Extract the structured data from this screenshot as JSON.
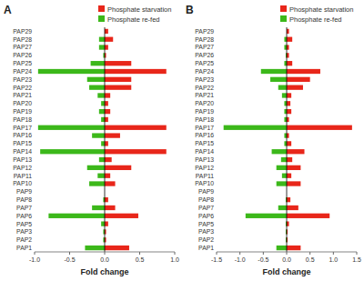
{
  "chart_data": [
    {
      "type": "bar",
      "orientation": "horizontal",
      "title": "A",
      "x_label": "Fold change",
      "categories": [
        "PAP29",
        "PAP28",
        "PAP27",
        "PAP26",
        "PAP25",
        "PAP24",
        "PAP23",
        "PAP22",
        "PAP21",
        "PAP20",
        "PAP19",
        "PAP18",
        "PAP17",
        "PAP16",
        "PAP15",
        "PAP14",
        "PAP13",
        "PAP12",
        "PAP11",
        "PAP10",
        "PAP9",
        "PAP8",
        "PAP7",
        "PAP6",
        "PAP5",
        "PAP3",
        "PAP2",
        "PAP1"
      ],
      "series": [
        {
          "name": "Phosphate starvation",
          "color": "#e8261a",
          "values": [
            0.05,
            0.12,
            0.05,
            0.02,
            0.38,
            0.88,
            0.38,
            0.38,
            0.08,
            0.05,
            0.08,
            0.05,
            0.88,
            0.22,
            0.05,
            0.88,
            0.1,
            0.38,
            0.08,
            0.15,
            0.0,
            0.05,
            0.15,
            0.48,
            0.05,
            0.02,
            0.02,
            0.35
          ]
        },
        {
          "name": "Phosphate re-fed",
          "color": "#3cb81a",
          "values": [
            0.0,
            -0.08,
            -0.08,
            -0.02,
            -0.2,
            -0.95,
            -0.25,
            -0.22,
            -0.1,
            -0.05,
            -0.08,
            -0.05,
            -0.95,
            -0.18,
            -0.05,
            -0.92,
            -0.08,
            -0.25,
            -0.1,
            -0.22,
            0.0,
            -0.02,
            -0.18,
            -0.8,
            -0.05,
            -0.02,
            -0.02,
            -0.28
          ]
        }
      ],
      "xlim": [
        -1.0,
        1.0
      ],
      "xticks": [
        {
          "value": -1.0,
          "label": "-1.0"
        },
        -0.5,
        {
          "value": 0.0,
          "label": "0.0"
        },
        0.5,
        {
          "value": 1.0,
          "label": "1.0"
        }
      ],
      "grid": false,
      "legend": "upper right"
    },
    {
      "type": "bar",
      "orientation": "horizontal",
      "title": "B",
      "x_label": "Fold change",
      "categories": [
        "PAP29",
        "PAP28",
        "PAP27",
        "PAP26",
        "PAP25",
        "PAP24",
        "PAP23",
        "PAP22",
        "PAP21",
        "PAP20",
        "PAP19",
        "PAP18",
        "PAP17",
        "PAP16",
        "PAP15",
        "PAP14",
        "PAP13",
        "PAP12",
        "PAP11",
        "PAP10",
        "PAP9",
        "PAP8",
        "PAP7",
        "PAP6",
        "PAP5",
        "PAP3",
        "PAP2",
        "PAP1"
      ],
      "series": [
        {
          "name": "Phosphate starvation",
          "color": "#e8261a",
          "values": [
            0.05,
            0.12,
            0.05,
            0.05,
            0.12,
            0.72,
            0.5,
            0.35,
            0.1,
            0.08,
            0.1,
            0.05,
            1.4,
            0.05,
            0.1,
            0.38,
            0.12,
            0.3,
            0.1,
            0.3,
            0.0,
            0.08,
            0.25,
            0.92,
            0.05,
            0.02,
            0.02,
            0.3
          ]
        },
        {
          "name": "Phosphate re-fed",
          "color": "#3cb81a",
          "values": [
            0.0,
            -0.05,
            -0.05,
            -0.02,
            -0.05,
            -0.55,
            -0.35,
            -0.18,
            -0.1,
            -0.05,
            -0.05,
            -0.05,
            -1.35,
            -0.05,
            -0.05,
            -0.32,
            -0.12,
            -0.22,
            -0.1,
            -0.22,
            0.0,
            -0.02,
            -0.18,
            -0.88,
            -0.02,
            -0.02,
            -0.02,
            -0.22
          ]
        }
      ],
      "xlim": [
        -1.5,
        1.5
      ],
      "xticks": [
        -1.5,
        {
          "value": -1.0,
          "label": "-1.0"
        },
        -0.5,
        {
          "value": 0.0,
          "label": "0.0"
        },
        0.5,
        {
          "value": 1.0,
          "label": "1.0"
        },
        1.5
      ],
      "grid": false,
      "legend": "upper right"
    }
  ]
}
